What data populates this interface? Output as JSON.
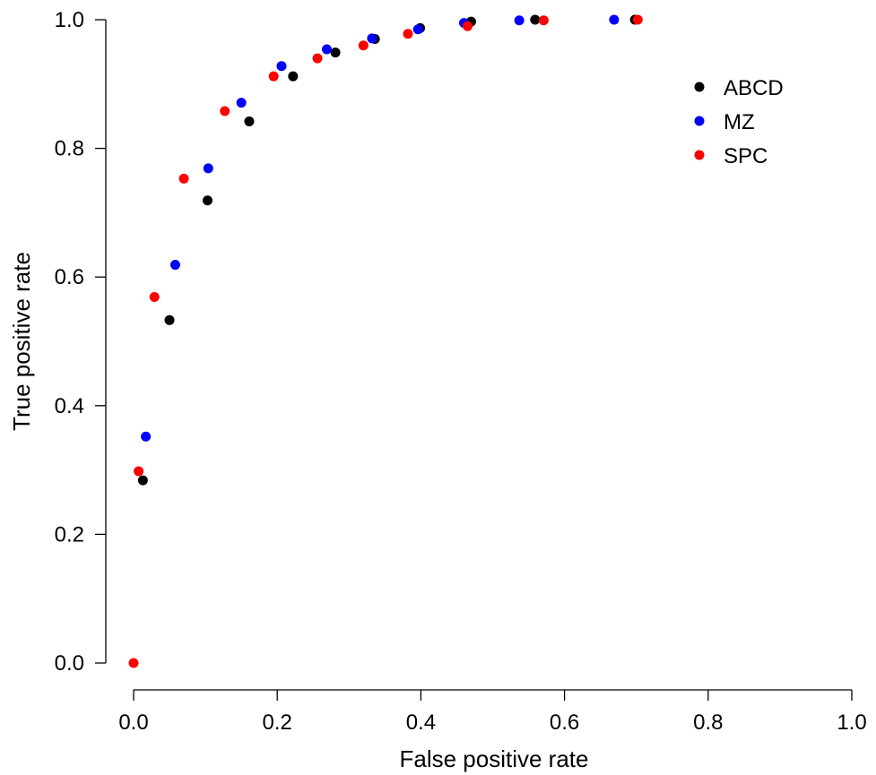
{
  "chart_data": {
    "type": "scatter",
    "title": "",
    "xlabel": "False positive rate",
    "ylabel": "True positive rate",
    "xlim": [
      0.0,
      1.0
    ],
    "ylim": [
      0.0,
      1.0
    ],
    "x_ticks": [
      "0.0",
      "0.2",
      "0.4",
      "0.6",
      "0.8",
      "1.0"
    ],
    "y_ticks": [
      "0.0",
      "0.2",
      "0.4",
      "0.6",
      "0.8",
      "1.0"
    ],
    "grid": false,
    "legend_position": "top-right",
    "series": [
      {
        "name": "ABCD",
        "color": "#000000",
        "points": [
          [
            0.013,
            0.284
          ],
          [
            0.05,
            0.533
          ],
          [
            0.103,
            0.719
          ],
          [
            0.161,
            0.842
          ],
          [
            0.222,
            0.912
          ],
          [
            0.281,
            0.949
          ],
          [
            0.336,
            0.97
          ],
          [
            0.399,
            0.987
          ],
          [
            0.47,
            0.997
          ],
          [
            0.559,
            1.0
          ],
          [
            0.698,
            1.0
          ]
        ]
      },
      {
        "name": "MZ",
        "color": "#0000ff",
        "points": [
          [
            0.017,
            0.352
          ],
          [
            0.058,
            0.619
          ],
          [
            0.104,
            0.769
          ],
          [
            0.15,
            0.871
          ],
          [
            0.206,
            0.928
          ],
          [
            0.269,
            0.954
          ],
          [
            0.332,
            0.971
          ],
          [
            0.396,
            0.985
          ],
          [
            0.46,
            0.995
          ],
          [
            0.537,
            0.999
          ],
          [
            0.669,
            1.0
          ]
        ]
      },
      {
        "name": "SPC",
        "color": "#ff0000",
        "points": [
          [
            0.0,
            0.0
          ],
          [
            0.007,
            0.298
          ],
          [
            0.029,
            0.569
          ],
          [
            0.07,
            0.753
          ],
          [
            0.127,
            0.858
          ],
          [
            0.195,
            0.912
          ],
          [
            0.256,
            0.94
          ],
          [
            0.32,
            0.96
          ],
          [
            0.382,
            0.978
          ],
          [
            0.465,
            0.99
          ],
          [
            0.571,
            0.999
          ],
          [
            0.702,
            1.0
          ]
        ]
      }
    ]
  }
}
